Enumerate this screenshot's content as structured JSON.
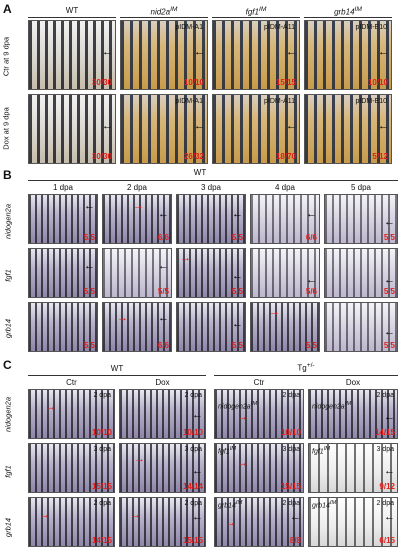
{
  "panelA": {
    "letter": "A",
    "col_headers": [
      "WT",
      "nid2a",
      "fgf1",
      "grb14"
    ],
    "col_header_sup": [
      "",
      "IM",
      "IM",
      "IM"
    ],
    "row_labels": [
      "Ctr at 9 dpa",
      "Dox at 9 dpa"
    ],
    "rows": [
      {
        "cells": [
          {
            "label": "",
            "count": "30/30"
          },
          {
            "label": "pIDM-A1",
            "count": "10/10"
          },
          {
            "label": "pIDM-A11",
            "count": "15/15"
          },
          {
            "label": "pIDM-E10",
            "count": "10/10"
          }
        ]
      },
      {
        "cells": [
          {
            "label": "",
            "count": "30/30"
          },
          {
            "label": "pIDM-A1",
            "count": "26/32"
          },
          {
            "label": "pIDM-A11",
            "count": "18/70"
          },
          {
            "label": "pIDM-E10",
            "count": "5/12"
          }
        ]
      }
    ]
  },
  "panelB": {
    "letter": "B",
    "group_header": "WT",
    "col_headers": [
      "1 dpa",
      "2 dpa",
      "3 dpa",
      "4 dpa",
      "5 dpa"
    ],
    "row_labels": [
      "nidogen2a",
      "fgf1",
      "grb14"
    ],
    "counts": [
      [
        "5/5",
        "6/6",
        "5/5",
        "6/6",
        "5/5"
      ],
      [
        "5/5",
        "5/5",
        "5/5",
        "5/6",
        "5/5"
      ],
      [
        "5/5",
        "6/6",
        "5/5",
        "5/5",
        "5/5"
      ]
    ]
  },
  "panelC": {
    "letter": "C",
    "group_headers": [
      "WT",
      "Tg"
    ],
    "group_header_sup": [
      "",
      "+/-"
    ],
    "col_headers": [
      "Ctr",
      "Dox",
      "Ctr",
      "Dox"
    ],
    "row_labels": [
      "nidogen2a",
      "fgf1",
      "grb14"
    ],
    "rows": [
      {
        "cells": [
          {
            "dpa": "2 dpa",
            "gene": "",
            "sup": "",
            "count": "10/10"
          },
          {
            "dpa": "2 dpa",
            "gene": "",
            "sup": "",
            "count": "10/10"
          },
          {
            "dpa": "2 dpa",
            "gene": "nidogen2a",
            "sup": "IM",
            "count": "10/10"
          },
          {
            "dpa": "2 dpa",
            "gene": "nidogen2a",
            "sup": "IM",
            "count": "14/15"
          }
        ]
      },
      {
        "cells": [
          {
            "dpa": "3 dpa",
            "gene": "",
            "sup": "",
            "count": "15/15"
          },
          {
            "dpa": "3 dpa",
            "gene": "",
            "sup": "",
            "count": "14/14"
          },
          {
            "dpa": "3 dpa",
            "gene": "fgf1",
            "sup": "IM",
            "count": "15/15"
          },
          {
            "dpa": "3 dpa",
            "gene": "fgf1",
            "sup": "IM",
            "count": "9/12"
          }
        ]
      },
      {
        "cells": [
          {
            "dpa": "2 dpa",
            "gene": "",
            "sup": "",
            "count": "14/15"
          },
          {
            "dpa": "2 dpa",
            "gene": "",
            "sup": "",
            "count": "15/15"
          },
          {
            "dpa": "2 dpa",
            "gene": "grb14",
            "sup": "IM",
            "count": "8/8"
          },
          {
            "dpa": "2 dpa",
            "gene": "grb14",
            "sup": "IM",
            "count": "6/15"
          }
        ]
      }
    ]
  }
}
